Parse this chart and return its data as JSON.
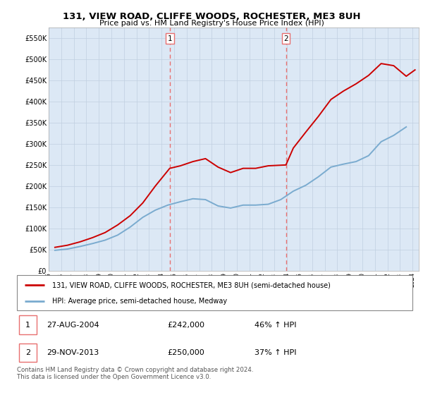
{
  "title": "131, VIEW ROAD, CLIFFE WOODS, ROCHESTER, ME3 8UH",
  "subtitle": "Price paid vs. HM Land Registry's House Price Index (HPI)",
  "legend_line1": "131, VIEW ROAD, CLIFFE WOODS, ROCHESTER, ME3 8UH (semi-detached house)",
  "legend_line2": "HPI: Average price, semi-detached house, Medway",
  "sale1_date": "27-AUG-2004",
  "sale1_price": "£242,000",
  "sale1_hpi": "46% ↑ HPI",
  "sale2_date": "29-NOV-2013",
  "sale2_price": "£250,000",
  "sale2_hpi": "37% ↑ HPI",
  "footer": "Contains HM Land Registry data © Crown copyright and database right 2024.\nThis data is licensed under the Open Government Licence v3.0.",
  "red_color": "#cc0000",
  "blue_color": "#7aabcf",
  "vline_color": "#e87070",
  "bg_color": "#dce8f5",
  "grid_color": "#c0cfe0",
  "ylim": [
    0,
    575000
  ],
  "yticks": [
    0,
    50000,
    100000,
    150000,
    200000,
    250000,
    300000,
    350000,
    400000,
    450000,
    500000,
    550000
  ],
  "ytick_labels": [
    "£0",
    "£50K",
    "£100K",
    "£150K",
    "£200K",
    "£250K",
    "£300K",
    "£350K",
    "£400K",
    "£450K",
    "£500K",
    "£550K"
  ],
  "sale1_x": 2004.65,
  "sale2_x": 2013.91,
  "hpi_x": [
    1995.5,
    1996.5,
    1997.5,
    1998.5,
    1999.5,
    2000.5,
    2001.5,
    2002.5,
    2003.5,
    2004.5,
    2005.5,
    2006.5,
    2007.5,
    2008.5,
    2009.5,
    2010.5,
    2011.5,
    2012.5,
    2013.5,
    2014.5,
    2015.5,
    2016.5,
    2017.5,
    2018.5,
    2019.5,
    2020.5,
    2021.5,
    2022.5,
    2023.5
  ],
  "hpi_y": [
    48000,
    51000,
    57000,
    64000,
    72000,
    84000,
    103000,
    126000,
    143000,
    155000,
    163000,
    170000,
    168000,
    153000,
    148000,
    155000,
    155000,
    157000,
    168000,
    188000,
    202000,
    222000,
    245000,
    252000,
    258000,
    272000,
    305000,
    320000,
    340000
  ],
  "red_x": [
    1995.5,
    1996.5,
    1997.5,
    1998.5,
    1999.5,
    2000.5,
    2001.5,
    2002.5,
    2003.5,
    2004.65,
    2005.5,
    2006.5,
    2007.5,
    2008.5,
    2009.5,
    2010.5,
    2011.5,
    2012.5,
    2013.91,
    2014.5,
    2015.5,
    2016.5,
    2017.5,
    2018.5,
    2019.5,
    2020.5,
    2021.5,
    2022.5,
    2023.5,
    2024.2
  ],
  "red_y": [
    55000,
    60000,
    68000,
    78000,
    90000,
    108000,
    130000,
    160000,
    200000,
    242000,
    248000,
    258000,
    265000,
    245000,
    232000,
    242000,
    242000,
    248000,
    250000,
    290000,
    328000,
    365000,
    405000,
    425000,
    442000,
    462000,
    490000,
    485000,
    460000,
    475000
  ],
  "xlim": [
    1995,
    2024.5
  ],
  "xtick_years": [
    1995,
    1996,
    1997,
    1998,
    1999,
    2000,
    2001,
    2002,
    2003,
    2004,
    2005,
    2006,
    2007,
    2008,
    2009,
    2010,
    2011,
    2012,
    2013,
    2014,
    2015,
    2016,
    2017,
    2018,
    2019,
    2020,
    2021,
    2022,
    2023,
    2024
  ]
}
